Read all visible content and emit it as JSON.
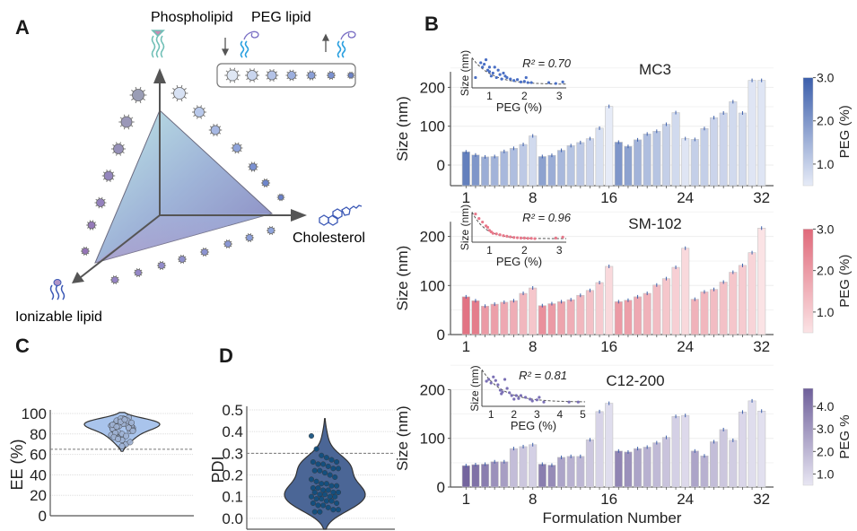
{
  "panels": {
    "A": {
      "letter": "A",
      "labels": {
        "phospholipid": "Phospholipid",
        "peg_lipid": "PEG lipid",
        "cholesterol": "Cholesterol",
        "ionizable_lipid": "Ionizable lipid"
      },
      "icons": [
        "phospholipid-icon",
        "peg-lipid-icon",
        "cholesterol-icon",
        "ionizable-lipid-icon",
        "lnp-particle-icon",
        "arrow-down-icon",
        "arrow-up-icon"
      ]
    },
    "B": {
      "letter": "B"
    },
    "C": {
      "letter": "C"
    },
    "D": {
      "letter": "D"
    }
  },
  "chart_data": [
    {
      "id": "mc3",
      "type": "bar",
      "title": "MC3",
      "xlabel": "",
      "ylabel": "Size (nm)",
      "ylim": [
        -50,
        240
      ],
      "yticks": [
        0,
        100,
        200
      ],
      "xticks": [
        1,
        8,
        16,
        24,
        32
      ],
      "categories": [
        1,
        2,
        3,
        4,
        5,
        6,
        7,
        8,
        9,
        10,
        11,
        12,
        13,
        14,
        15,
        16,
        17,
        18,
        19,
        20,
        21,
        22,
        23,
        24,
        25,
        26,
        27,
        28,
        29,
        30,
        31,
        32
      ],
      "values": [
        34,
        26,
        21,
        22,
        35,
        43,
        53,
        75,
        22,
        25,
        38,
        50,
        58,
        68,
        95,
        151,
        59,
        48,
        65,
        80,
        87,
        105,
        135,
        68,
        66,
        94,
        122,
        134,
        163,
        134,
        218,
        218
      ],
      "peg_percent": [
        2.4,
        2.0,
        1.6,
        1.5,
        1.4,
        1.3,
        1.1,
        0.8,
        1.8,
        1.6,
        1.4,
        1.2,
        1.1,
        0.9,
        0.7,
        0.5,
        2.0,
        1.8,
        1.5,
        1.3,
        1.2,
        1.0,
        0.8,
        0.6,
        1.0,
        1.0,
        0.9,
        0.9,
        0.8,
        0.8,
        0.6,
        0.6
      ],
      "colorbar": {
        "label": "PEG (%)",
        "ticks": [
          "1.0",
          "2.0",
          "3.0"
        ],
        "range": [
          0.5,
          3.0
        ],
        "color_low": "#e6ebf7",
        "color_high": "#3b5eab"
      },
      "grid": true,
      "inset": {
        "type": "scatter",
        "xlabel": "PEG (%)",
        "ylabel": "Size (nm)",
        "xticks": [
          "1",
          "2",
          "3"
        ],
        "xlim": [
          0.5,
          3.2
        ],
        "annotation": "R² = 0.70",
        "point_color": "#4a6fc4",
        "points": [
          [
            0.6,
            0.35
          ],
          [
            0.75,
            0.85
          ],
          [
            0.8,
            0.7
          ],
          [
            0.85,
            0.8
          ],
          [
            0.9,
            0.95
          ],
          [
            0.95,
            0.6
          ],
          [
            1.0,
            0.55
          ],
          [
            1.0,
            0.7
          ],
          [
            1.05,
            0.4
          ],
          [
            1.1,
            0.5
          ],
          [
            1.15,
            0.7
          ],
          [
            1.2,
            0.35
          ],
          [
            1.25,
            0.6
          ],
          [
            1.3,
            0.45
          ],
          [
            1.35,
            0.3
          ],
          [
            1.4,
            0.5
          ],
          [
            1.45,
            0.4
          ],
          [
            1.5,
            0.35
          ],
          [
            1.6,
            0.3
          ],
          [
            1.7,
            0.25
          ],
          [
            1.8,
            0.28
          ],
          [
            1.9,
            0.2
          ],
          [
            2.0,
            0.22
          ],
          [
            2.05,
            0.35
          ],
          [
            2.1,
            0.18
          ],
          [
            2.2,
            0.18
          ],
          [
            2.7,
            0.18
          ],
          [
            2.9,
            0.15
          ],
          [
            3.1,
            0.2
          ]
        ]
      }
    },
    {
      "id": "sm102",
      "type": "bar",
      "title": "SM-102",
      "xlabel": "",
      "ylabel": "Size (nm)",
      "ylim": [
        0,
        230
      ],
      "yticks": [
        0,
        100,
        200
      ],
      "xticks": [
        1,
        8,
        16,
        24,
        32
      ],
      "categories": [
        1,
        2,
        3,
        4,
        5,
        6,
        7,
        8,
        9,
        10,
        11,
        12,
        13,
        14,
        15,
        16,
        17,
        18,
        19,
        20,
        21,
        22,
        23,
        24,
        25,
        26,
        27,
        28,
        29,
        30,
        31,
        32
      ],
      "values": [
        77,
        69,
        58,
        62,
        66,
        69,
        84,
        95,
        59,
        63,
        67,
        71,
        80,
        90,
        106,
        139,
        67,
        70,
        77,
        84,
        101,
        114,
        137,
        176,
        72,
        87,
        92,
        107,
        127,
        141,
        167,
        217
      ],
      "peg_percent": [
        2.8,
        2.6,
        2.0,
        1.9,
        1.7,
        1.6,
        1.4,
        1.1,
        2.2,
        2.0,
        1.8,
        1.6,
        1.4,
        1.2,
        1.0,
        0.7,
        2.0,
        1.9,
        1.7,
        1.5,
        1.3,
        1.1,
        0.9,
        0.7,
        1.5,
        1.4,
        1.3,
        1.2,
        1.1,
        1.0,
        0.8,
        0.5
      ],
      "colorbar": {
        "label": "PEG (%)",
        "ticks": [
          "1.0",
          "2.0",
          "3.0"
        ],
        "range": [
          0.5,
          3.0
        ],
        "color_low": "#fbe3e5",
        "color_high": "#e0697a"
      },
      "grid": true,
      "inset": {
        "type": "scatter",
        "xlabel": "PEG (%)",
        "ylabel": "Size (nm)",
        "xticks": [
          "1",
          "2",
          "3"
        ],
        "xlim": [
          0.5,
          3.2
        ],
        "annotation": "R² = 0.96",
        "point_color": "#e8788a",
        "points": [
          [
            0.6,
            0.95
          ],
          [
            0.7,
            0.8
          ],
          [
            0.8,
            0.68
          ],
          [
            0.9,
            0.55
          ],
          [
            0.95,
            0.5
          ],
          [
            1.0,
            0.4
          ],
          [
            1.05,
            0.35
          ],
          [
            1.1,
            0.3
          ],
          [
            1.2,
            0.28
          ],
          [
            1.3,
            0.25
          ],
          [
            1.4,
            0.22
          ],
          [
            1.5,
            0.2
          ],
          [
            1.6,
            0.18
          ],
          [
            1.7,
            0.16
          ],
          [
            1.8,
            0.15
          ],
          [
            1.9,
            0.14
          ],
          [
            2.0,
            0.14
          ],
          [
            2.1,
            0.13
          ],
          [
            2.2,
            0.13
          ],
          [
            2.3,
            0.12
          ],
          [
            2.9,
            0.14
          ],
          [
            3.1,
            0.17
          ]
        ]
      }
    },
    {
      "id": "c12200",
      "type": "bar",
      "title": "C12-200",
      "xlabel": "Formulation Number",
      "ylabel": "Size (nm)",
      "ylim": [
        0,
        200
      ],
      "yticks": [
        0,
        100,
        200
      ],
      "xticks": [
        1,
        8,
        16,
        24,
        32
      ],
      "categories": [
        1,
        2,
        3,
        4,
        5,
        6,
        7,
        8,
        9,
        10,
        11,
        12,
        13,
        14,
        15,
        16,
        17,
        18,
        19,
        20,
        21,
        22,
        23,
        24,
        25,
        26,
        27,
        28,
        29,
        30,
        31,
        32
      ],
      "values": [
        44,
        46,
        47,
        52,
        52,
        79,
        83,
        87,
        47,
        45,
        61,
        63,
        63,
        97,
        155,
        172,
        74,
        72,
        79,
        82,
        91,
        102,
        145,
        147,
        74,
        64,
        93,
        118,
        96,
        154,
        177,
        156
      ],
      "peg_percent": [
        4.6,
        4.2,
        3.8,
        3.2,
        2.8,
        1.8,
        1.5,
        1.2,
        3.8,
        3.4,
        2.6,
        2.2,
        2.0,
        1.5,
        1.1,
        0.8,
        3.6,
        3.2,
        2.6,
        2.2,
        1.9,
        1.6,
        1.2,
        0.9,
        2.6,
        2.2,
        1.8,
        1.5,
        1.3,
        1.0,
        0.8,
        0.7
      ],
      "colorbar": {
        "label": "PEG %",
        "ticks": [
          "1.0",
          "2.0",
          "3.0",
          "4.0"
        ],
        "range": [
          0.5,
          4.8
        ],
        "color_low": "#e8e6f3",
        "color_high": "#6e5f9a"
      },
      "grid": true,
      "inset": {
        "type": "scatter",
        "xlabel": "PEG (%)",
        "ylabel": "Size (nm)",
        "xticks": [
          "1",
          "2",
          "3",
          "4",
          "5"
        ],
        "xlim": [
          0.6,
          5.1
        ],
        "annotation": "R² = 0.81",
        "point_color": "#7a6fb5",
        "points": [
          [
            0.8,
            0.7
          ],
          [
            0.9,
            0.75
          ],
          [
            1.0,
            0.65
          ],
          [
            1.1,
            0.82
          ],
          [
            1.2,
            0.72
          ],
          [
            1.3,
            0.6
          ],
          [
            1.4,
            0.45
          ],
          [
            1.45,
            0.35
          ],
          [
            1.5,
            0.4
          ],
          [
            1.6,
            0.75
          ],
          [
            1.7,
            0.5
          ],
          [
            1.8,
            0.38
          ],
          [
            1.9,
            0.3
          ],
          [
            2.0,
            0.2
          ],
          [
            2.1,
            0.3
          ],
          [
            2.2,
            0.22
          ],
          [
            2.3,
            0.3
          ],
          [
            2.5,
            0.25
          ],
          [
            2.7,
            0.2
          ],
          [
            2.8,
            0.15
          ],
          [
            3.0,
            0.18
          ],
          [
            3.1,
            0.25
          ],
          [
            3.3,
            0.12
          ],
          [
            4.4,
            0.12
          ],
          [
            4.8,
            0.12
          ]
        ]
      }
    },
    {
      "id": "ee",
      "type": "violin",
      "ylabel": "EE (%)",
      "ylim": [
        0,
        100
      ],
      "yticks": [
        0,
        20,
        40,
        60,
        80,
        100
      ],
      "threshold": 65,
      "fill_color": "#a9c4ec",
      "point_color": "#9fb2d3",
      "points": [
        88,
        90,
        92,
        95,
        93,
        87,
        85,
        89,
        91,
        94,
        96,
        86,
        84,
        82,
        80,
        78,
        83,
        88,
        90,
        92,
        91,
        89,
        87,
        85,
        93,
        95,
        94,
        86,
        84,
        80,
        76,
        74,
        70,
        72,
        79,
        81,
        88,
        90,
        93,
        91,
        89,
        87,
        92,
        94,
        86,
        83,
        77,
        75,
        68
      ],
      "grid": true
    },
    {
      "id": "pdi",
      "type": "violin",
      "ylabel": "PDI",
      "ylim": [
        -0.05,
        0.5
      ],
      "yticks": [
        "0.0",
        "0.1",
        "0.2",
        "0.3",
        "0.4",
        "0.5"
      ],
      "threshold": 0.3,
      "fill_color": "#4b6696",
      "point_color": "#0f4d7c",
      "points": [
        0.38,
        0.32,
        0.29,
        0.28,
        0.27,
        0.26,
        0.26,
        0.25,
        0.25,
        0.24,
        0.23,
        0.23,
        0.22,
        0.22,
        0.21,
        0.2,
        0.19,
        0.18,
        0.17,
        0.16,
        0.16,
        0.15,
        0.15,
        0.14,
        0.14,
        0.13,
        0.13,
        0.12,
        0.12,
        0.12,
        0.11,
        0.11,
        0.1,
        0.1,
        0.1,
        0.09,
        0.09,
        0.08,
        0.08,
        0.07,
        0.07,
        0.06,
        0.06,
        0.05,
        0.04,
        0.04,
        0.03,
        0.03
      ],
      "grid": true
    }
  ]
}
